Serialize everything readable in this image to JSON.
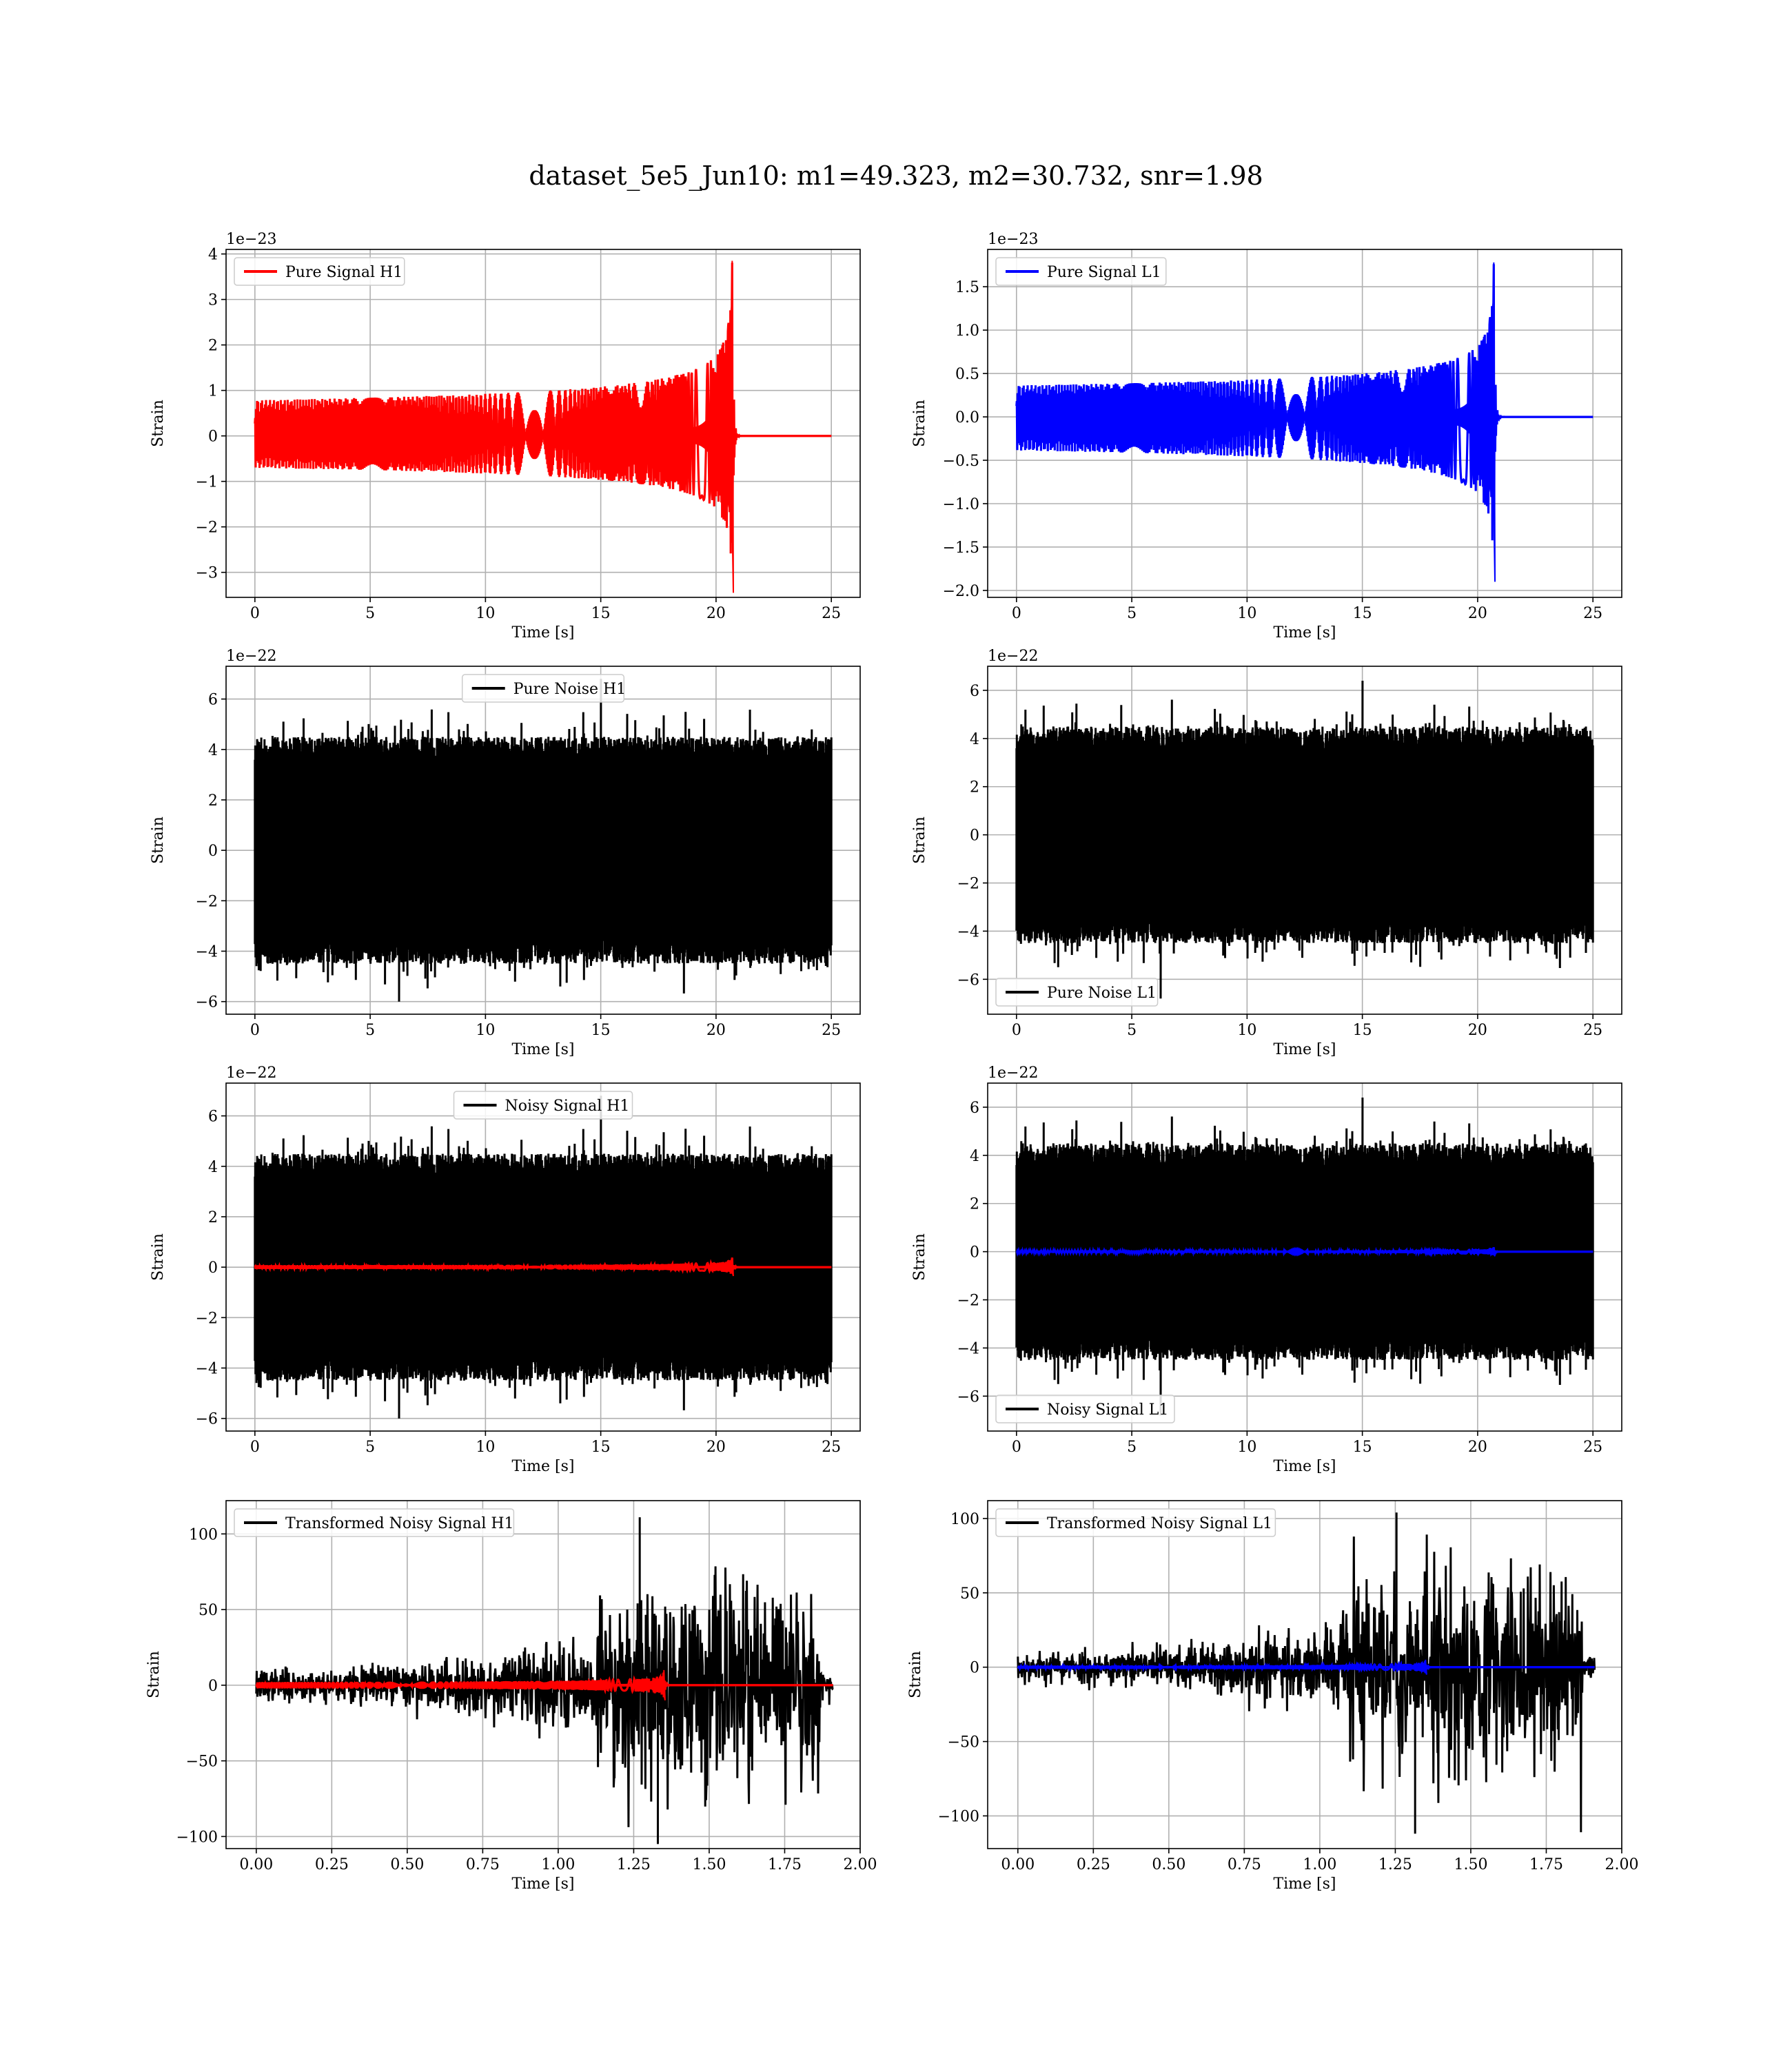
{
  "figure": {
    "title": "dataset_5e5_Jun10: m1=49.323, m2=30.732, snr=1.98"
  },
  "chart_data": [
    {
      "type": "line",
      "id": "pure-signal-h1",
      "xlabel": "Time [s]",
      "ylabel": "Strain",
      "offset_text": "1e−23",
      "xlim": [
        -1.25,
        26.25
      ],
      "ylim": [
        -3.55,
        4.1
      ],
      "xticks": [
        0,
        5,
        10,
        15,
        20,
        25
      ],
      "xtick_labels": [
        "0",
        "5",
        "10",
        "15",
        "20",
        "25"
      ],
      "yticks": [
        -3,
        -2,
        -1,
        0,
        1,
        2,
        3,
        4
      ],
      "ytick_labels": [
        "−3",
        "−2",
        "−1",
        "0",
        "1",
        "2",
        "3",
        "4"
      ],
      "grid": true,
      "legend": {
        "position": "top-left",
        "entries": [
          {
            "label": "Pure Signal H1",
            "color": "#ff0000"
          }
        ]
      },
      "series": [
        {
          "name": "Pure Signal H1",
          "color": "#ff0000",
          "kind": "chirp",
          "x_start": 0,
          "x_end": 25,
          "t_merger": 20.7,
          "peak_pos": 3.85,
          "peak_neg": -3.45
        }
      ]
    },
    {
      "type": "line",
      "id": "pure-signal-l1",
      "xlabel": "Time [s]",
      "ylabel": "Strain",
      "offset_text": "1e−23",
      "xlim": [
        -1.25,
        26.25
      ],
      "ylim": [
        -2.08,
        1.93
      ],
      "xticks": [
        0,
        5,
        10,
        15,
        20,
        25
      ],
      "xtick_labels": [
        "0",
        "5",
        "10",
        "15",
        "20",
        "25"
      ],
      "yticks": [
        -2.0,
        -1.5,
        -1.0,
        -0.5,
        0.0,
        0.5,
        1.0,
        1.5
      ],
      "ytick_labels": [
        "−2.0",
        "−1.5",
        "−1.0",
        "−0.5",
        "0.0",
        "0.5",
        "1.0",
        "1.5"
      ],
      "grid": true,
      "legend": {
        "position": "top-left",
        "entries": [
          {
            "label": "Pure Signal L1",
            "color": "#0000ff"
          }
        ]
      },
      "series": [
        {
          "name": "Pure Signal L1",
          "color": "#0000ff",
          "kind": "chirp",
          "x_start": 0,
          "x_end": 25,
          "t_merger": 20.7,
          "peak_pos": 1.78,
          "peak_neg": -1.9
        }
      ]
    },
    {
      "type": "line",
      "id": "pure-noise-h1",
      "xlabel": "Time [s]",
      "ylabel": "Strain",
      "offset_text": "1e−22",
      "xlim": [
        -1.25,
        26.25
      ],
      "ylim": [
        -6.5,
        7.3
      ],
      "xticks": [
        0,
        5,
        10,
        15,
        20,
        25
      ],
      "xtick_labels": [
        "0",
        "5",
        "10",
        "15",
        "20",
        "25"
      ],
      "yticks": [
        -6,
        -4,
        -2,
        0,
        2,
        4,
        6
      ],
      "ytick_labels": [
        "−6",
        "−4",
        "−2",
        "0",
        "2",
        "4",
        "6"
      ],
      "grid": true,
      "legend": {
        "position": "top-center",
        "entries": [
          {
            "label": "Pure Noise H1",
            "color": "#000000"
          }
        ]
      },
      "series": [
        {
          "name": "Pure Noise H1",
          "color": "#000000",
          "kind": "noise",
          "x_start": 0,
          "x_end": 25,
          "max": 6.8,
          "min": -6.0,
          "seed": 11
        }
      ]
    },
    {
      "type": "line",
      "id": "pure-noise-l1",
      "xlabel": "Time [s]",
      "ylabel": "Strain",
      "offset_text": "1e−22",
      "xlim": [
        -1.25,
        26.25
      ],
      "ylim": [
        -7.45,
        7.0
      ],
      "xticks": [
        0,
        5,
        10,
        15,
        20,
        25
      ],
      "xtick_labels": [
        "0",
        "5",
        "10",
        "15",
        "20",
        "25"
      ],
      "yticks": [
        -6,
        -4,
        -2,
        0,
        2,
        4,
        6
      ],
      "ytick_labels": [
        "−6",
        "−4",
        "−2",
        "0",
        "2",
        "4",
        "6"
      ],
      "grid": true,
      "legend": {
        "position": "bottom-left",
        "entries": [
          {
            "label": "Pure Noise L1",
            "color": "#000000"
          }
        ]
      },
      "series": [
        {
          "name": "Pure Noise L1",
          "color": "#000000",
          "kind": "noise",
          "x_start": 0,
          "x_end": 25,
          "max": 6.4,
          "min": -6.8,
          "seed": 23
        }
      ]
    },
    {
      "type": "line",
      "id": "noisy-signal-h1",
      "xlabel": "Time [s]",
      "ylabel": "Strain",
      "offset_text": "1e−22",
      "xlim": [
        -1.25,
        26.25
      ],
      "ylim": [
        -6.5,
        7.3
      ],
      "xticks": [
        0,
        5,
        10,
        15,
        20,
        25
      ],
      "xtick_labels": [
        "0",
        "5",
        "10",
        "15",
        "20",
        "25"
      ],
      "yticks": [
        -6,
        -4,
        -2,
        0,
        2,
        4,
        6
      ],
      "ytick_labels": [
        "−6",
        "−4",
        "−2",
        "0",
        "2",
        "4",
        "6"
      ],
      "grid": true,
      "legend": {
        "position": "top-center",
        "entries": [
          {
            "label": "Noisy Signal H1",
            "color": "#000000"
          }
        ]
      },
      "series": [
        {
          "name": "Noisy Signal H1",
          "color": "#000000",
          "kind": "noise",
          "x_start": 0,
          "x_end": 25,
          "max": 6.8,
          "min": -6.0,
          "seed": 11
        },
        {
          "color": "#ff0000",
          "kind": "chirp",
          "x_start": 0,
          "x_end": 25,
          "t_merger": 20.7,
          "peak_pos": 0.38,
          "peak_neg": -0.35
        }
      ]
    },
    {
      "type": "line",
      "id": "noisy-signal-l1",
      "xlabel": "Time [s]",
      "ylabel": "Strain",
      "offset_text": "1e−22",
      "xlim": [
        -1.25,
        26.25
      ],
      "ylim": [
        -7.45,
        7.0
      ],
      "xticks": [
        0,
        5,
        10,
        15,
        20,
        25
      ],
      "xtick_labels": [
        "0",
        "5",
        "10",
        "15",
        "20",
        "25"
      ],
      "yticks": [
        -6,
        -4,
        -2,
        0,
        2,
        4,
        6
      ],
      "ytick_labels": [
        "−6",
        "−4",
        "−2",
        "0",
        "2",
        "4",
        "6"
      ],
      "grid": true,
      "legend": {
        "position": "bottom-left",
        "entries": [
          {
            "label": "Noisy Signal L1",
            "color": "#000000"
          }
        ]
      },
      "series": [
        {
          "name": "Noisy Signal L1",
          "color": "#000000",
          "kind": "noise",
          "x_start": 0,
          "x_end": 25,
          "max": 6.4,
          "min": -6.8,
          "seed": 23
        },
        {
          "color": "#0000ff",
          "kind": "chirp",
          "x_start": 0,
          "x_end": 25,
          "t_merger": 20.7,
          "peak_pos": 0.18,
          "peak_neg": -0.19
        }
      ]
    },
    {
      "type": "line",
      "id": "transformed-h1",
      "xlabel": "Time [s]",
      "ylabel": "Strain",
      "offset_text": "",
      "xlim": [
        -0.1,
        2.0
      ],
      "ylim": [
        -108,
        122
      ],
      "xticks": [
        0.0,
        0.25,
        0.5,
        0.75,
        1.0,
        1.25,
        1.5,
        1.75,
        2.0
      ],
      "xtick_labels": [
        "0.00",
        "0.25",
        "0.50",
        "0.75",
        "1.00",
        "1.25",
        "1.50",
        "1.75",
        "2.00"
      ],
      "yticks": [
        -100,
        -50,
        0,
        50,
        100
      ],
      "ytick_labels": [
        "−100",
        "−50",
        "0",
        "50",
        "100"
      ],
      "grid": true,
      "legend": {
        "position": "top-left",
        "entries": [
          {
            "label": "Transformed Noisy Signal H1",
            "color": "#000000"
          }
        ]
      },
      "series": [
        {
          "name": "Transformed Noisy Signal H1",
          "color": "#000000",
          "kind": "whitened",
          "x_start": 0,
          "x_end": 1.91,
          "t_jump": 1.12,
          "t_drop": 1.87,
          "max": 111,
          "min": -105,
          "seed": 37
        },
        {
          "color": "#ff0000",
          "kind": "chirp",
          "x_start": 0,
          "x_end": 1.91,
          "t_merger": 1.35,
          "peak_pos": 10,
          "peak_neg": -10
        }
      ]
    },
    {
      "type": "line",
      "id": "transformed-l1",
      "xlabel": "Time [s]",
      "ylabel": "Strain",
      "offset_text": "",
      "xlim": [
        -0.1,
        2.0
      ],
      "ylim": [
        -122,
        112
      ],
      "xticks": [
        0.0,
        0.25,
        0.5,
        0.75,
        1.0,
        1.25,
        1.5,
        1.75,
        2.0
      ],
      "xtick_labels": [
        "0.00",
        "0.25",
        "0.50",
        "0.75",
        "1.00",
        "1.25",
        "1.50",
        "1.75",
        "2.00"
      ],
      "yticks": [
        -100,
        -50,
        0,
        50,
        100
      ],
      "ytick_labels": [
        "−100",
        "−50",
        "0",
        "50",
        "100"
      ],
      "grid": true,
      "legend": {
        "position": "top-left",
        "entries": [
          {
            "label": "Transformed Noisy Signal L1",
            "color": "#000000"
          }
        ]
      },
      "series": [
        {
          "name": "Transformed Noisy Signal L1",
          "color": "#000000",
          "kind": "whitened",
          "x_start": 0,
          "x_end": 1.91,
          "t_jump": 1.1,
          "t_drop": 1.87,
          "max": 104,
          "min": -112,
          "seed": 53
        },
        {
          "color": "#0000ff",
          "kind": "chirp",
          "x_start": 0,
          "x_end": 1.91,
          "t_merger": 1.35,
          "peak_pos": 5,
          "peak_neg": -5
        }
      ]
    }
  ]
}
